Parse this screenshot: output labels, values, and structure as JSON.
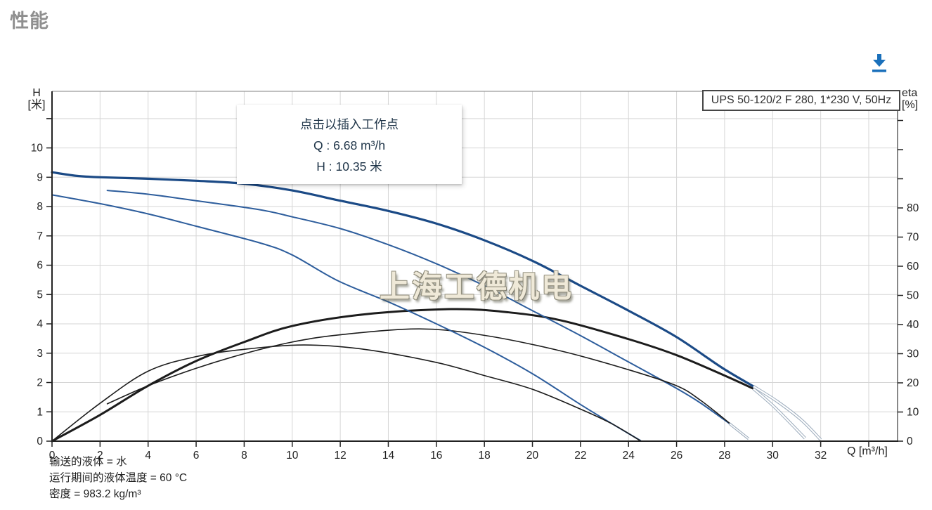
{
  "page": {
    "title": "性能"
  },
  "toolbar": {
    "download_icon": "download-arrow",
    "accent_color": "#1a70bb"
  },
  "chart_data": {
    "type": "line",
    "title_box": "UPS 50-120/2 F 280, 1*230 V, 50Hz",
    "watermark": "上海工德机电",
    "tooltip": {
      "line1": "点击以插入工作点",
      "line2": "Q : 6.68 m³/h",
      "line3": "H : 10.35 米"
    },
    "x_axis": {
      "label": "Q [m³/h]",
      "min": 0,
      "max": 35.2,
      "ticks": [
        0,
        2,
        4,
        6,
        8,
        10,
        12,
        14,
        16,
        18,
        20,
        22,
        24,
        26,
        28,
        30,
        32
      ],
      "unlabeled_ticks": [
        34
      ]
    },
    "y_left": {
      "label_line1": "H",
      "label_line2": "[米]",
      "min": 0,
      "max": 11.93,
      "ticks": [
        0,
        1,
        2,
        3,
        4,
        5,
        6,
        7,
        8,
        9,
        10
      ],
      "unlabeled_ticks": [
        11
      ]
    },
    "y_right": {
      "label_line1": "eta",
      "label_line2": "[%]",
      "min": 0,
      "max": 120,
      "ticks": [
        0,
        10,
        20,
        30,
        40,
        50,
        60,
        70,
        80
      ],
      "unlabeled_ticks": [
        90,
        100,
        110
      ]
    },
    "grid": {
      "color": "#d6d6d6",
      "border_color": "#9a9a9a",
      "axis_color": "#222222"
    },
    "series": [
      {
        "name": "speed3-head-curve",
        "axis": "H",
        "color": "#1b4a86",
        "width": 3.2,
        "hollow": false,
        "points": [
          [
            0,
            9.17
          ],
          [
            1,
            9.05
          ],
          [
            2,
            9.0
          ],
          [
            4,
            8.95
          ],
          [
            6,
            8.88
          ],
          [
            8,
            8.78
          ],
          [
            10,
            8.55
          ],
          [
            12,
            8.2
          ],
          [
            14,
            7.85
          ],
          [
            16,
            7.42
          ],
          [
            18,
            6.85
          ],
          [
            20,
            6.15
          ],
          [
            22,
            5.3
          ],
          [
            24,
            4.45
          ],
          [
            26,
            3.55
          ],
          [
            27.9,
            2.5
          ],
          [
            29.2,
            1.87
          ]
        ]
      },
      {
        "name": "speed3-eta-curve",
        "axis": "eta",
        "color": "#1c1c1c",
        "width": 3,
        "hollow": false,
        "points": [
          [
            0,
            0
          ],
          [
            2,
            9
          ],
          [
            4,
            19
          ],
          [
            6,
            27.5
          ],
          [
            8,
            34
          ],
          [
            10,
            39.5
          ],
          [
            13,
            43.5
          ],
          [
            16.6,
            45.3
          ],
          [
            19,
            44.2
          ],
          [
            21.2,
            41.4
          ],
          [
            24,
            35
          ],
          [
            26,
            29.5
          ],
          [
            28,
            22.5
          ],
          [
            29.2,
            18
          ]
        ]
      },
      {
        "name": "speed2-head-curve",
        "axis": "H",
        "color": "#2d5d9c",
        "width": 2,
        "hollow": false,
        "points": [
          [
            2.3,
            8.55
          ],
          [
            4,
            8.42
          ],
          [
            6,
            8.2
          ],
          [
            8.6,
            7.9
          ],
          [
            10,
            7.65
          ],
          [
            12,
            7.25
          ],
          [
            14,
            6.7
          ],
          [
            16,
            6.05
          ],
          [
            18,
            5.3
          ],
          [
            20,
            4.45
          ],
          [
            22,
            3.6
          ],
          [
            24,
            2.7
          ],
          [
            26,
            1.8
          ],
          [
            27,
            1.3
          ],
          [
            28.2,
            0.6
          ]
        ]
      },
      {
        "name": "speed2-eta-curve",
        "axis": "eta",
        "color": "#1c1c1c",
        "width": 1.6,
        "hollow": false,
        "points": [
          [
            2.3,
            12.8
          ],
          [
            4,
            19
          ],
          [
            6,
            25
          ],
          [
            8,
            30
          ],
          [
            10,
            34
          ],
          [
            12,
            36.5
          ],
          [
            15.3,
            38.5
          ],
          [
            18,
            36.3
          ],
          [
            21.2,
            30.9
          ],
          [
            24,
            24.5
          ],
          [
            26,
            19
          ],
          [
            27,
            14
          ],
          [
            28.2,
            6.2
          ]
        ]
      },
      {
        "name": "speed1-head-curve",
        "axis": "H",
        "color": "#2d5d9c",
        "width": 2,
        "hollow": false,
        "points": [
          [
            0,
            8.4
          ],
          [
            2,
            8.1
          ],
          [
            4,
            7.75
          ],
          [
            6,
            7.33
          ],
          [
            8.7,
            6.75
          ],
          [
            10,
            6.35
          ],
          [
            11.9,
            5.47
          ],
          [
            14,
            4.75
          ],
          [
            16,
            4.0
          ],
          [
            18,
            3.2
          ],
          [
            20,
            2.3
          ],
          [
            22,
            1.25
          ],
          [
            23.3,
            0.6
          ],
          [
            24.5,
            0.02
          ]
        ]
      },
      {
        "name": "speed1-eta-curve",
        "axis": "eta",
        "color": "#1c1c1c",
        "width": 1.6,
        "hollow": false,
        "points": [
          [
            0,
            0
          ],
          [
            2,
            13
          ],
          [
            4,
            24
          ],
          [
            6,
            29
          ],
          [
            8,
            31.5
          ],
          [
            10.5,
            33
          ],
          [
            13,
            31.5
          ],
          [
            16,
            27
          ],
          [
            18,
            22.5
          ],
          [
            20,
            17.8
          ],
          [
            22,
            11
          ],
          [
            23.3,
            6
          ],
          [
            24.5,
            0.1
          ]
        ]
      },
      {
        "name": "speed3-head-extension",
        "axis": "H",
        "color": "#9aaabb",
        "width": 4.2,
        "hollow": true,
        "points": [
          [
            29.2,
            1.87
          ],
          [
            30.2,
            1.35
          ],
          [
            31.2,
            0.72
          ],
          [
            32.0,
            0.05
          ]
        ]
      },
      {
        "name": "speed3-eta-extension",
        "axis": "eta",
        "color": "#9aaabb",
        "width": 4.2,
        "hollow": true,
        "points": [
          [
            29.2,
            18
          ],
          [
            30.1,
            11.5
          ],
          [
            31.35,
            1
          ]
        ]
      },
      {
        "name": "speed2-extension",
        "axis": "H",
        "color": "#9aaabb",
        "width": 3.6,
        "hollow": true,
        "points": [
          [
            28.2,
            0.6
          ],
          [
            29.0,
            0.08
          ]
        ]
      }
    ],
    "footer_lines": [
      "输送的液体 = 水",
      "运行期间的液体温度 = 60 °C",
      "密度 = 983.2 kg/m³"
    ]
  }
}
